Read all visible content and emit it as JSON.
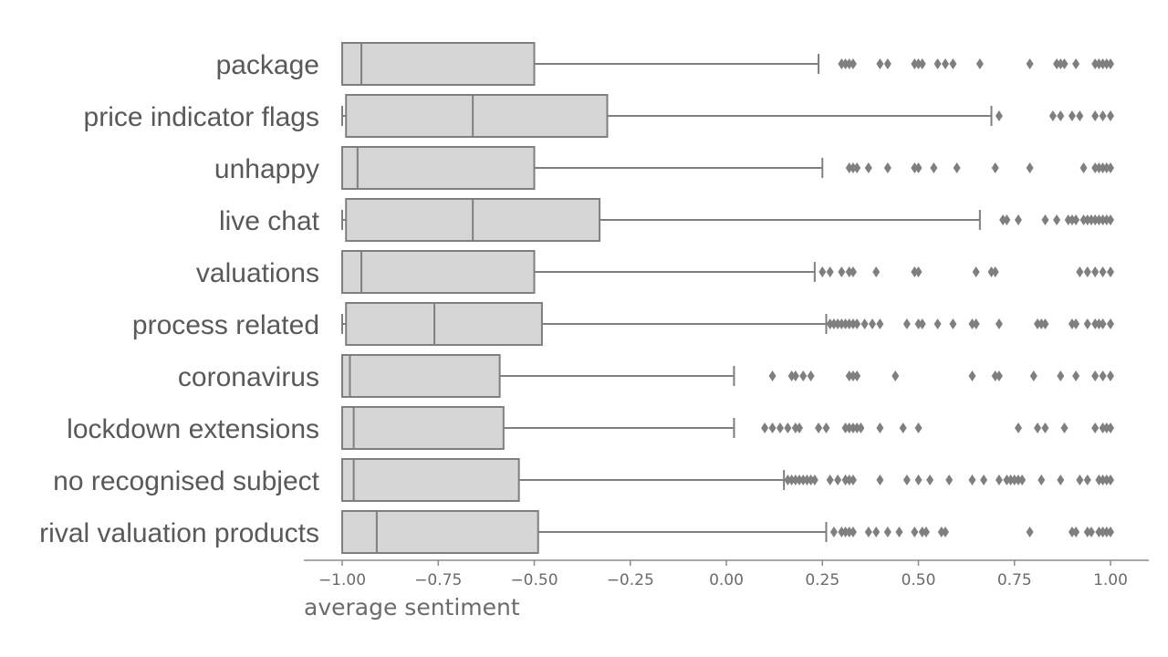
{
  "chart_data": {
    "type": "boxplot",
    "orientation": "horizontal",
    "xlabel": "average sentiment",
    "xlim": [
      -1.0,
      1.0
    ],
    "xticks": [
      -1.0,
      -0.75,
      -0.5,
      -0.25,
      0.0,
      0.25,
      0.5,
      0.75,
      1.0
    ],
    "xtick_labels": [
      "−1.00",
      "−0.75",
      "−0.50",
      "−0.25",
      "0.00",
      "0.25",
      "0.50",
      "0.75",
      "1.00"
    ],
    "grid": false,
    "colors": {
      "box_fill": "#d6d6d6",
      "box_edge": "#7f7f7f",
      "flier": "#7f7f7f",
      "axis": "#8c8c8c"
    },
    "series": [
      {
        "category": "package",
        "whisker_low": -1.0,
        "q1": -1.0,
        "median": -0.95,
        "q3": -0.5,
        "whisker_high": 0.24,
        "outliers": [
          0.3,
          0.31,
          0.32,
          0.33,
          0.4,
          0.42,
          0.49,
          0.5,
          0.51,
          0.55,
          0.57,
          0.59,
          0.66,
          0.79,
          0.86,
          0.87,
          0.88,
          0.91,
          0.96,
          0.97,
          0.98,
          0.99,
          1.0
        ]
      },
      {
        "category": "price indicator flags",
        "whisker_low": -1.0,
        "q1": -0.99,
        "median": -0.66,
        "q3": -0.31,
        "whisker_high": 0.69,
        "outliers": [
          0.71,
          0.85,
          0.87,
          0.9,
          0.92,
          0.96,
          0.98,
          1.0
        ]
      },
      {
        "category": "unhappy",
        "whisker_low": -1.0,
        "q1": -1.0,
        "median": -0.96,
        "q3": -0.5,
        "whisker_high": 0.25,
        "outliers": [
          0.32,
          0.33,
          0.34,
          0.37,
          0.42,
          0.49,
          0.5,
          0.54,
          0.6,
          0.7,
          0.79,
          0.93,
          0.96,
          0.97,
          0.98,
          0.99,
          1.0
        ]
      },
      {
        "category": "live chat",
        "whisker_low": -1.0,
        "q1": -0.99,
        "median": -0.66,
        "q3": -0.33,
        "whisker_high": 0.66,
        "outliers": [
          0.72,
          0.73,
          0.76,
          0.83,
          0.86,
          0.89,
          0.9,
          0.91,
          0.93,
          0.94,
          0.95,
          0.96,
          0.97,
          0.98,
          0.99,
          1.0
        ]
      },
      {
        "category": "valuations",
        "whisker_low": -1.0,
        "q1": -1.0,
        "median": -0.95,
        "q3": -0.5,
        "whisker_high": 0.23,
        "outliers": [
          0.25,
          0.27,
          0.3,
          0.32,
          0.33,
          0.39,
          0.49,
          0.5,
          0.65,
          0.69,
          0.7,
          0.92,
          0.94,
          0.96,
          0.98,
          1.0
        ]
      },
      {
        "category": "process related",
        "whisker_low": -1.0,
        "q1": -0.99,
        "median": -0.76,
        "q3": -0.48,
        "whisker_high": 0.26,
        "outliers": [
          0.27,
          0.28,
          0.29,
          0.3,
          0.31,
          0.32,
          0.33,
          0.34,
          0.36,
          0.38,
          0.4,
          0.47,
          0.5,
          0.51,
          0.55,
          0.59,
          0.64,
          0.65,
          0.71,
          0.81,
          0.82,
          0.83,
          0.9,
          0.91,
          0.94,
          0.96,
          0.97,
          0.98,
          1.0
        ]
      },
      {
        "category": "coronavirus",
        "whisker_low": -1.0,
        "q1": -1.0,
        "median": -0.98,
        "q3": -0.59,
        "whisker_high": 0.02,
        "outliers": [
          0.12,
          0.17,
          0.18,
          0.2,
          0.22,
          0.32,
          0.33,
          0.34,
          0.44,
          0.64,
          0.7,
          0.71,
          0.8,
          0.87,
          0.91,
          0.96,
          0.98,
          1.0
        ]
      },
      {
        "category": "lockdown extensions",
        "whisker_low": -1.0,
        "q1": -1.0,
        "median": -0.97,
        "q3": -0.58,
        "whisker_high": 0.02,
        "outliers": [
          0.1,
          0.12,
          0.14,
          0.16,
          0.18,
          0.19,
          0.24,
          0.26,
          0.31,
          0.32,
          0.33,
          0.34,
          0.35,
          0.4,
          0.46,
          0.5,
          0.76,
          0.81,
          0.83,
          0.88,
          0.96,
          0.98,
          0.99,
          1.0
        ]
      },
      {
        "category": "no recognised subject",
        "whisker_low": -1.0,
        "q1": -1.0,
        "median": -0.97,
        "q3": -0.54,
        "whisker_high": 0.15,
        "outliers": [
          0.16,
          0.17,
          0.18,
          0.19,
          0.2,
          0.21,
          0.22,
          0.23,
          0.27,
          0.29,
          0.31,
          0.32,
          0.33,
          0.4,
          0.47,
          0.5,
          0.53,
          0.58,
          0.64,
          0.67,
          0.71,
          0.73,
          0.74,
          0.75,
          0.76,
          0.77,
          0.82,
          0.87,
          0.92,
          0.94,
          0.97,
          0.98,
          0.99,
          1.0
        ]
      },
      {
        "category": "rival valuation products",
        "whisker_low": -1.0,
        "q1": -1.0,
        "median": -0.91,
        "q3": -0.49,
        "whisker_high": 0.26,
        "outliers": [
          0.28,
          0.3,
          0.31,
          0.32,
          0.33,
          0.37,
          0.39,
          0.42,
          0.45,
          0.49,
          0.51,
          0.52,
          0.56,
          0.57,
          0.79,
          0.9,
          0.91,
          0.94,
          0.95,
          0.97,
          0.98,
          0.99,
          1.0
        ]
      }
    ]
  }
}
